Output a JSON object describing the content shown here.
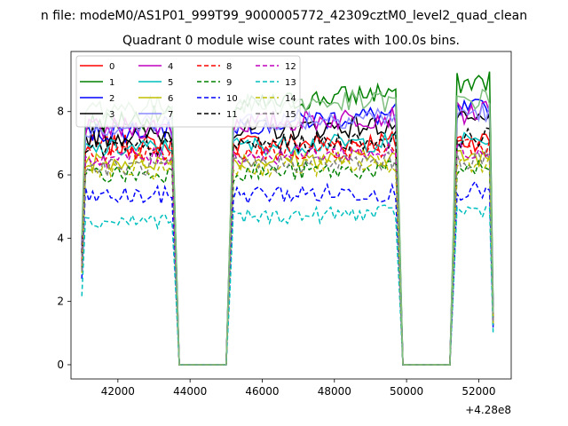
{
  "chart_data": {
    "type": "line",
    "suptitle": "n file: modeM0/AS1P01_999T99_9000005772_42309cztM0_level2_quad_clean",
    "title": "Quadrant 0 module wise count rates with 100.0s bins.",
    "xlabel": "",
    "ylabel": "",
    "x_offset_label": "+4.28e8",
    "xlim": [
      40700,
      52900
    ],
    "ylim": [
      -0.45,
      9.9
    ],
    "xticks": [
      42000,
      44000,
      46000,
      48000,
      50000,
      52000
    ],
    "xtick_labels": [
      "42000",
      "44000",
      "46000",
      "48000",
      "50000",
      "52000"
    ],
    "yticks": [
      0,
      2,
      4,
      6,
      8
    ],
    "ytick_labels": [
      "0",
      "2",
      "4",
      "6",
      "8"
    ],
    "grid": false,
    "legend_position": "top-left",
    "legend_columns": 4,
    "segments": [
      {
        "x_start": 41000,
        "x_end": 43600,
        "step": 100
      },
      {
        "x_start": 45100,
        "x_end": 49800,
        "step": 100
      },
      {
        "x_start": 51300,
        "x_end": 52400,
        "step": 100
      }
    ],
    "gap_ranges": [
      [
        43700,
        45000
      ],
      [
        49900,
        51200
      ]
    ],
    "series": [
      {
        "name": "0",
        "color": "#ff0000",
        "dash": "solid",
        "level": 6.9,
        "trend": 0.2,
        "noise": 0.35
      },
      {
        "name": "1",
        "color": "#008000",
        "dash": "solid",
        "level": 7.6,
        "trend": 1.4,
        "noise": 0.35
      },
      {
        "name": "2",
        "color": "#0000ff",
        "dash": "solid",
        "level": 7.3,
        "trend": 0.8,
        "noise": 0.35
      },
      {
        "name": "3",
        "color": "#000000",
        "dash": "solid",
        "level": 7.2,
        "trend": 0.5,
        "noise": 0.35
      },
      {
        "name": "4",
        "color": "#bf00bf",
        "dash": "solid",
        "level": 7.4,
        "trend": 0.6,
        "noise": 0.35
      },
      {
        "name": "5",
        "color": "#00bfbf",
        "dash": "solid",
        "level": 6.8,
        "trend": 0.3,
        "noise": 0.3
      },
      {
        "name": "6",
        "color": "#bfbf00",
        "dash": "solid",
        "level": 6.4,
        "trend": 0.2,
        "noise": 0.3
      },
      {
        "name": "7",
        "color": "#8c8cff",
        "dash": "solid",
        "level": 7.5,
        "trend": 0.5,
        "noise": 0.35
      },
      {
        "name": "8",
        "color": "#ff0000",
        "dash": "dashed",
        "level": 6.6,
        "trend": 0.3,
        "noise": 0.3
      },
      {
        "name": "9",
        "color": "#008000",
        "dash": "dashed",
        "level": 6.0,
        "trend": 0.2,
        "noise": 0.3
      },
      {
        "name": "10",
        "color": "#0000ff",
        "dash": "dashed",
        "level": 5.3,
        "trend": 0.2,
        "noise": 0.3
      },
      {
        "name": "11",
        "color": "#000000",
        "dash": "dashed",
        "level": 6.8,
        "trend": 0.4,
        "noise": 0.3
      },
      {
        "name": "12",
        "color": "#bf00bf",
        "dash": "dashed",
        "level": 6.5,
        "trend": 0.3,
        "noise": 0.3
      },
      {
        "name": "13",
        "color": "#00bfbf",
        "dash": "dashed",
        "level": 4.5,
        "trend": 0.4,
        "noise": 0.25
      },
      {
        "name": "14",
        "color": "#bfbf00",
        "dash": "dashed",
        "level": 6.1,
        "trend": 0.3,
        "noise": 0.3
      },
      {
        "name": "15",
        "color": "#7f7f7f",
        "dash": "dashed",
        "level": 6.2,
        "trend": 0.3,
        "noise": 0.3
      }
    ],
    "extra_series_color": "#7fbf7f",
    "extra_series_level": 8.1
  }
}
